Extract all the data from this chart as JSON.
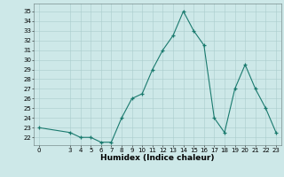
{
  "x": [
    0,
    3,
    4,
    5,
    6,
    7,
    8,
    9,
    10,
    11,
    12,
    13,
    14,
    15,
    16,
    17,
    18,
    19,
    20,
    21,
    22,
    23
  ],
  "y": [
    23,
    22.5,
    22,
    22,
    21.5,
    21.5,
    24,
    26,
    26.5,
    29,
    31,
    32.5,
    35,
    33,
    31.5,
    24,
    22.5,
    27,
    29.5,
    27,
    25,
    22.5
  ],
  "line_color": "#1a7a6e",
  "marker_color": "#1a7a6e",
  "bg_color": "#cde8e8",
  "grid_color": "#aacccc",
  "xlabel": "Humidex (Indice chaleur)",
  "ylabel_ticks": [
    22,
    23,
    24,
    25,
    26,
    27,
    28,
    29,
    30,
    31,
    32,
    33,
    34,
    35
  ],
  "xlim": [
    -0.5,
    23.5
  ],
  "ylim": [
    21.2,
    35.8
  ],
  "xticks": [
    0,
    3,
    4,
    5,
    6,
    7,
    8,
    9,
    10,
    11,
    12,
    13,
    14,
    15,
    16,
    17,
    18,
    19,
    20,
    21,
    22,
    23
  ],
  "title_fontsize": 7,
  "label_fontsize": 6.5,
  "tick_fontsize": 5.0
}
